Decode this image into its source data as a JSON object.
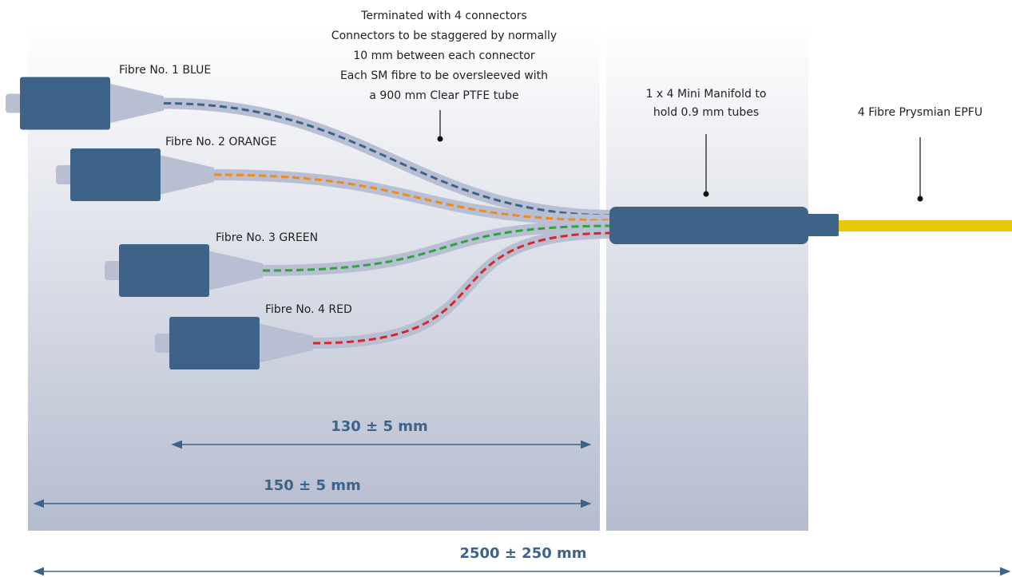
{
  "annotations": {
    "termination": [
      "Terminated with 4 connectors",
      "Connectors to be staggered by normally",
      "10 mm between each connector",
      "Each SM fibre to be oversleeved with",
      "a 900 mm Clear PTFE tube"
    ],
    "manifold": [
      "1 x 4 Mini Manifold to",
      "hold 0.9 mm tubes"
    ],
    "cable": "4 Fibre Prysmian EPFU"
  },
  "fibres": [
    "Fibre No. 1 BLUE",
    "Fibre No. 2 ORANGE",
    "Fibre No. 3 GREEN",
    "Fibre No. 4 RED"
  ],
  "dimensions": [
    "130 ± 5 mm",
    "150 ± 5 mm",
    "2500 ± 250 mm"
  ]
}
